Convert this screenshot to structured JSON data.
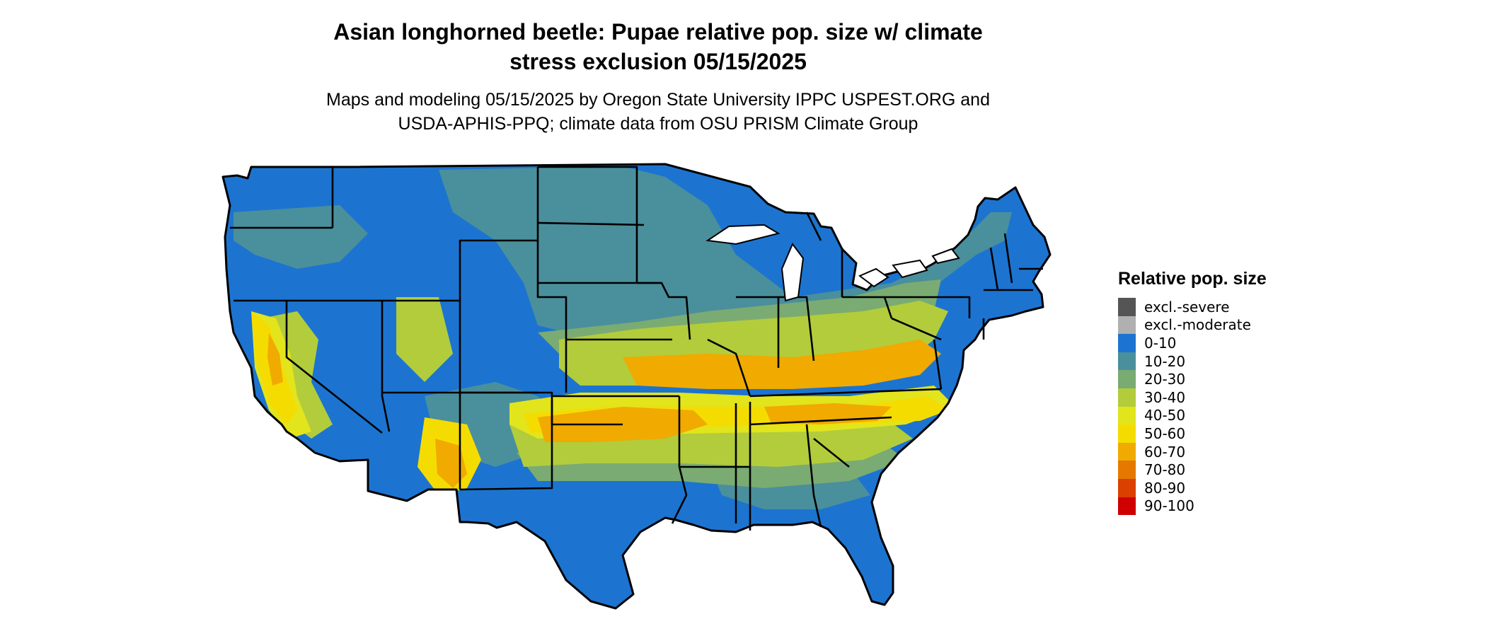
{
  "title_line1": "Asian longhorned beetle: Pupae relative pop. size w/ climate",
  "title_line2": "stress exclusion 05/15/2025",
  "subtitle_line1": "Maps and modeling 05/15/2025 by Oregon State University IPPC USPEST.ORG and",
  "subtitle_line2": "USDA-APHIS-PPQ; climate data from OSU PRISM Climate Group",
  "legend": {
    "title": "Relative pop. size",
    "items": [
      {
        "label": "excl.-severe",
        "color": "#555555"
      },
      {
        "label": "excl.-moderate",
        "color": "#b0b0b0"
      },
      {
        "label": "0-10",
        "color": "#1c74d0"
      },
      {
        "label": "10-20",
        "color": "#4a8f9c"
      },
      {
        "label": "20-30",
        "color": "#7aab72"
      },
      {
        "label": "30-40",
        "color": "#b2cc3c"
      },
      {
        "label": "40-50",
        "color": "#e2e41c"
      },
      {
        "label": "50-60",
        "color": "#f5dc00"
      },
      {
        "label": "60-70",
        "color": "#f0aa00"
      },
      {
        "label": "70-80",
        "color": "#e67800"
      },
      {
        "label": "80-90",
        "color": "#dc4000"
      },
      {
        "label": "90-100",
        "color": "#d00000"
      }
    ]
  }
}
